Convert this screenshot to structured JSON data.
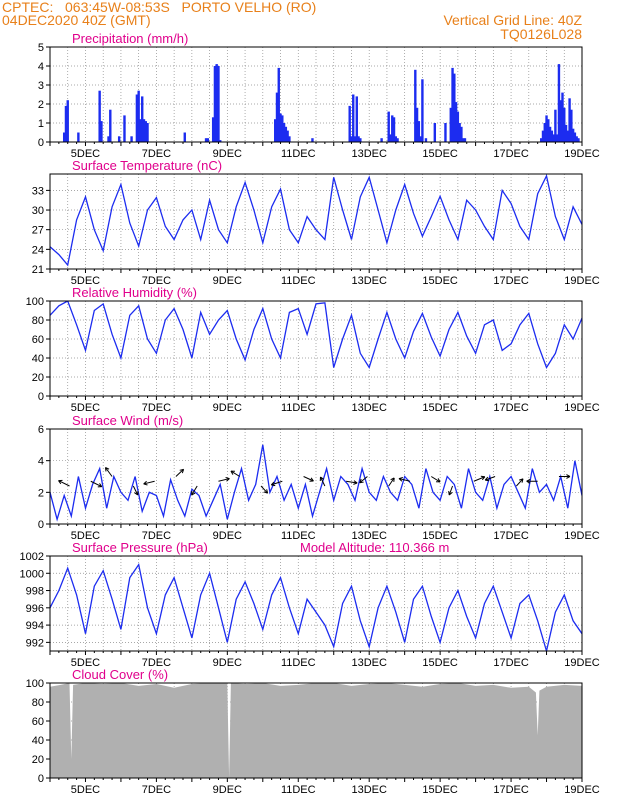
{
  "header": {
    "line1_left": "CPTEC:   063:45W-08:53S   PORTO VELHO (RO)",
    "line2_left": "04DEC2020 40Z (GMT)",
    "line1_right": "Vertical Grid Line: 40Z",
    "line2_right": "TQ0126L028"
  },
  "colors": {
    "header": "#e8801a",
    "title": "#e0008c",
    "series": "#1c2cf0",
    "cloud": "#b0b0b0",
    "grid": "#8c8c8c"
  },
  "chart_data": [
    {
      "type": "bar",
      "title": "Precipitation (mm/h)",
      "ylim": [
        0,
        5
      ],
      "yticks": [
        0,
        1,
        2,
        3,
        4,
        5
      ],
      "xlabels": [
        "5DEC",
        "7DEC",
        "9DEC",
        "11DEC",
        "13DEC",
        "15DEC",
        "17DEC",
        "19DEC"
      ],
      "grid": true,
      "x": [
        4.4,
        4.45,
        4.5,
        4.8,
        5.4,
        5.45,
        5.65,
        5.7,
        5.95,
        6.1,
        6.3,
        6.45,
        6.5,
        6.55,
        6.6,
        6.65,
        6.7,
        6.75,
        7.8,
        8.4,
        8.45,
        8.6,
        8.65,
        8.7,
        8.75,
        8.8,
        10.35,
        10.4,
        10.45,
        10.5,
        10.55,
        10.6,
        10.65,
        10.7,
        10.75,
        11.4,
        12.45,
        12.5,
        12.55,
        12.6,
        12.65,
        12.7,
        12.75,
        13.35,
        13.55,
        13.6,
        13.65,
        13.7,
        13.75,
        13.8,
        14.3,
        14.35,
        14.4,
        14.45,
        14.5,
        14.6,
        14.85,
        15.15,
        15.3,
        15.35,
        15.4,
        15.45,
        15.5,
        15.55,
        15.6,
        15.65,
        15.7,
        17.85,
        17.9,
        17.95,
        18.0,
        18.05,
        18.1,
        18.15,
        18.2,
        18.25,
        18.3,
        18.35,
        18.4,
        18.45,
        18.5,
        18.55,
        18.6,
        18.65,
        18.7,
        18.75,
        18.8,
        18.85,
        18.9
      ],
      "values": [
        0.5,
        1.9,
        2.2,
        0.5,
        2.7,
        1.1,
        0.3,
        1.7,
        0.3,
        1.4,
        0.3,
        2.5,
        2.7,
        1.2,
        2.4,
        1.2,
        1.1,
        1.0,
        0.5,
        0.2,
        0.2,
        1.3,
        4.0,
        4.1,
        4.0,
        0.1,
        1.2,
        2.6,
        3.9,
        1.5,
        1.4,
        1.0,
        0.8,
        0.6,
        0.3,
        0.2,
        1.9,
        0.3,
        2.5,
        0.3,
        2.4,
        0.3,
        0.2,
        0.2,
        1.6,
        0.4,
        1.4,
        1.3,
        0.3,
        0.2,
        3.8,
        1.8,
        1.1,
        0.3,
        3.3,
        0.2,
        1.0,
        1.0,
        1.8,
        3.9,
        3.6,
        2.1,
        1.6,
        1.0,
        0.8,
        0.2,
        0.2,
        0.2,
        0.6,
        1.0,
        1.4,
        1.2,
        0.8,
        0.6,
        0.4,
        1.7,
        0.4,
        4.1,
        2.2,
        2.6,
        1.8,
        0.9,
        0.6,
        2.3,
        1.7,
        0.7,
        0.5,
        0.3,
        0.2
      ]
    },
    {
      "type": "line",
      "title": "Surface Temperature (nC)",
      "ylim": [
        21,
        35.5
      ],
      "yticks": [
        21,
        24,
        27,
        30,
        33
      ],
      "xlabels": [
        "5DEC",
        "7DEC",
        "9DEC",
        "11DEC",
        "13DEC",
        "15DEC",
        "17DEC",
        "19DEC"
      ],
      "grid": true,
      "x": [
        4,
        4.25,
        4.5,
        4.75,
        5,
        5.25,
        5.5,
        5.75,
        6,
        6.25,
        6.5,
        6.75,
        7,
        7.25,
        7.5,
        7.75,
        8,
        8.25,
        8.5,
        8.75,
        9,
        9.25,
        9.5,
        9.75,
        10,
        10.25,
        10.5,
        10.75,
        11,
        11.25,
        11.5,
        11.75,
        12,
        12.25,
        12.5,
        12.75,
        13,
        13.25,
        13.5,
        13.75,
        14,
        14.25,
        14.5,
        14.75,
        15,
        15.25,
        15.5,
        15.75,
        16,
        16.25,
        16.5,
        16.75,
        17,
        17.25,
        17.5,
        17.75,
        18,
        18.25,
        18.5,
        18.75,
        19
      ],
      "values": [
        24.4,
        23.2,
        21.6,
        28.5,
        32.0,
        27.0,
        23.8,
        30.5,
        33.9,
        28.0,
        24.5,
        30.0,
        31.9,
        27.5,
        25.5,
        28.5,
        30.0,
        25.5,
        31.5,
        27.0,
        25.0,
        30.5,
        34.2,
        30.0,
        25.0,
        30.5,
        33.2,
        27.0,
        25.0,
        29.0,
        27.0,
        25.5,
        35.0,
        30.0,
        25.5,
        32.0,
        35.0,
        30.0,
        25.0,
        30.0,
        33.9,
        29.5,
        26.0,
        29.0,
        32.1,
        28.5,
        25.5,
        31.5,
        30.0,
        27.5,
        25.5,
        33.0,
        31.0,
        27.5,
        25.5,
        32.5,
        35.2,
        29.0,
        25.5,
        30.5,
        27.8
      ]
    },
    {
      "type": "line",
      "title": "Relative Humidity (%)",
      "ylim": [
        0,
        100
      ],
      "yticks": [
        0,
        20,
        40,
        60,
        80,
        100
      ],
      "xlabels": [
        "5DEC",
        "7DEC",
        "9DEC",
        "11DEC",
        "13DEC",
        "15DEC",
        "17DEC",
        "19DEC"
      ],
      "grid": true,
      "x": [
        4,
        4.25,
        4.5,
        4.75,
        5,
        5.25,
        5.5,
        5.75,
        6,
        6.25,
        6.5,
        6.75,
        7,
        7.25,
        7.5,
        7.75,
        8,
        8.25,
        8.5,
        8.75,
        9,
        9.25,
        9.5,
        9.75,
        10,
        10.25,
        10.5,
        10.75,
        11,
        11.25,
        11.5,
        11.75,
        12,
        12.25,
        12.5,
        12.75,
        13,
        13.25,
        13.5,
        13.75,
        14,
        14.25,
        14.5,
        14.75,
        15,
        15.25,
        15.5,
        15.75,
        16,
        16.25,
        16.5,
        16.75,
        17,
        17.25,
        17.5,
        17.75,
        18,
        18.25,
        18.5,
        18.75,
        19
      ],
      "values": [
        85,
        95,
        100,
        75,
        48,
        90,
        97,
        65,
        40,
        85,
        95,
        60,
        45,
        80,
        92,
        70,
        40,
        88,
        65,
        80,
        90,
        60,
        38,
        70,
        92,
        60,
        40,
        88,
        92,
        65,
        97,
        98,
        30,
        60,
        85,
        45,
        30,
        60,
        88,
        60,
        40,
        68,
        87,
        62,
        42,
        70,
        88,
        63,
        45,
        75,
        80,
        48,
        55,
        75,
        87,
        55,
        30,
        45,
        75,
        60,
        82
      ]
    },
    {
      "type": "line",
      "title": "Surface Wind (m/s)",
      "ylim": [
        0,
        6
      ],
      "yticks": [
        0,
        2,
        4,
        6
      ],
      "xlabels": [
        "5DEC",
        "7DEC",
        "9DEC",
        "11DEC",
        "13DEC",
        "15DEC",
        "17DEC",
        "19DEC"
      ],
      "grid": true,
      "x": [
        4,
        4.2,
        4.4,
        4.6,
        4.8,
        5,
        5.2,
        5.4,
        5.6,
        5.8,
        6,
        6.2,
        6.4,
        6.6,
        6.8,
        7,
        7.2,
        7.4,
        7.6,
        7.8,
        8,
        8.2,
        8.4,
        8.6,
        8.8,
        9,
        9.2,
        9.4,
        9.6,
        9.8,
        10,
        10.2,
        10.4,
        10.6,
        10.8,
        11,
        11.2,
        11.4,
        11.6,
        11.8,
        12,
        12.2,
        12.4,
        12.6,
        12.8,
        13,
        13.2,
        13.4,
        13.6,
        13.8,
        14,
        14.2,
        14.4,
        14.6,
        14.8,
        15,
        15.2,
        15.4,
        15.6,
        15.8,
        16,
        16.2,
        16.4,
        16.6,
        16.8,
        17,
        17.2,
        17.4,
        17.6,
        17.8,
        18,
        18.2,
        18.4,
        18.6,
        18.8,
        19
      ],
      "values": [
        2.0,
        0.3,
        1.8,
        0.5,
        3.0,
        1.0,
        2.5,
        3.5,
        1.0,
        3.0,
        2.0,
        1.5,
        3.0,
        0.8,
        2.0,
        1.8,
        0.5,
        2.8,
        1.5,
        0.5,
        2.2,
        1.8,
        0.5,
        1.5,
        2.5,
        0.3,
        2.0,
        3.5,
        1.5,
        2.5,
        5.0,
        2.0,
        3.0,
        1.5,
        2.5,
        1.0,
        2.5,
        0.5,
        2.0,
        3.5,
        1.5,
        3.0,
        2.5,
        1.5,
        3.5,
        2.0,
        1.5,
        3.0,
        2.0,
        1.5,
        3.0,
        2.5,
        1.0,
        3.5,
        2.0,
        1.5,
        3.0,
        2.5,
        1.0,
        3.5,
        2.0,
        1.5,
        3.0,
        1.0,
        2.5,
        3.0,
        2.0,
        1.0,
        3.5,
        2.0,
        2.5,
        1.5,
        3.0,
        1.0,
        4.0,
        1.8
      ]
    },
    {
      "type": "line",
      "title": "Surface Pressure (hPa)",
      "annotation": "Model Altitude: 110.366 m",
      "ylim": [
        991,
        1002
      ],
      "yticks": [
        992,
        994,
        996,
        998,
        1000,
        1002
      ],
      "xlabels": [
        "5DEC",
        "7DEC",
        "9DEC",
        "11DEC",
        "13DEC",
        "15DEC",
        "17DEC",
        "19DEC"
      ],
      "grid": true,
      "x": [
        4,
        4.25,
        4.5,
        4.75,
        5,
        5.25,
        5.5,
        5.75,
        6,
        6.25,
        6.5,
        6.75,
        7,
        7.25,
        7.5,
        7.75,
        8,
        8.25,
        8.5,
        8.75,
        9,
        9.25,
        9.5,
        9.75,
        10,
        10.25,
        10.5,
        10.75,
        11,
        11.25,
        11.5,
        11.75,
        12,
        12.25,
        12.5,
        12.75,
        13,
        13.25,
        13.5,
        13.75,
        14,
        14.25,
        14.5,
        14.75,
        15,
        15.25,
        15.5,
        15.75,
        16,
        16.25,
        16.5,
        16.75,
        17,
        17.25,
        17.5,
        17.75,
        18,
        18.25,
        18.5,
        18.75,
        19
      ],
      "values": [
        996.0,
        998.0,
        1000.6,
        997.5,
        993.0,
        998.5,
        1000.3,
        997.0,
        993.5,
        999.5,
        1001.0,
        996.0,
        993.0,
        997.5,
        999.5,
        996.0,
        992.5,
        997.5,
        1000.0,
        996.0,
        992.0,
        997.0,
        999.0,
        996.5,
        993.5,
        997.5,
        999.5,
        996.0,
        993.0,
        997.0,
        995.5,
        994.0,
        991.5,
        996.5,
        998.5,
        994.5,
        991.5,
        996.0,
        998.5,
        995.5,
        992.0,
        997.0,
        998.5,
        995.0,
        992.0,
        996.0,
        998.0,
        995.0,
        992.5,
        996.5,
        998.5,
        995.5,
        992.5,
        996.5,
        997.5,
        994.5,
        991.0,
        995.5,
        997.5,
        994.5,
        993.0
      ]
    },
    {
      "type": "area",
      "title": "Cloud Cover (%)",
      "ylim": [
        0,
        100
      ],
      "yticks": [
        0,
        20,
        40,
        60,
        80,
        100
      ],
      "xlabels": [
        "5DEC",
        "7DEC",
        "9DEC",
        "11DEC",
        "13DEC",
        "15DEC",
        "17DEC",
        "19DEC"
      ],
      "grid": true,
      "x": [
        4,
        4.3,
        4.55,
        4.6,
        4.65,
        5,
        5.5,
        6,
        6.5,
        7,
        7.5,
        8,
        8.5,
        9,
        9.05,
        9.1,
        9.5,
        10,
        10.5,
        11,
        11.5,
        12,
        12.5,
        13,
        13.5,
        14,
        14.5,
        15,
        15.5,
        16,
        16.5,
        17,
        17.5,
        17.7,
        17.75,
        17.8,
        18,
        18.5,
        19
      ],
      "values": [
        96,
        98,
        100,
        20,
        98,
        100,
        99,
        100,
        97,
        99,
        95,
        99,
        100,
        100,
        0,
        100,
        99,
        100,
        97,
        98,
        100,
        100,
        97,
        99,
        100,
        98,
        96,
        99,
        100,
        97,
        98,
        95,
        96,
        90,
        45,
        92,
        96,
        98,
        97
      ]
    }
  ]
}
